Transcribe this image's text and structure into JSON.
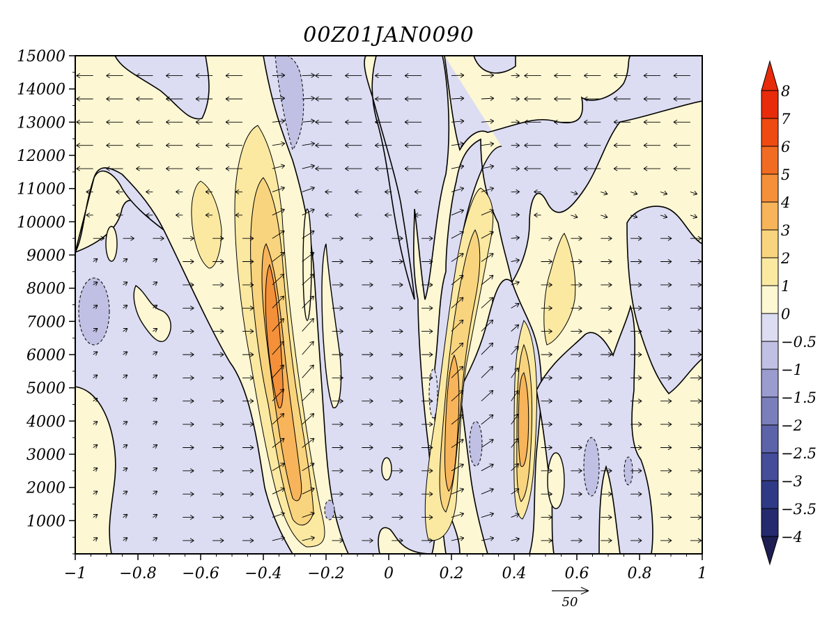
{
  "chart_data": {
    "type": "heatmap",
    "title": "00Z01JAN0090",
    "xlabel": "",
    "ylabel": "",
    "xlim": [
      -1,
      1
    ],
    "ylim": [
      0,
      15000
    ],
    "x_ticks": [
      -1,
      -0.8,
      -0.6,
      -0.4,
      -0.2,
      0,
      0.2,
      0.4,
      0.6,
      0.8,
      1
    ],
    "x_tick_labels": [
      "−1",
      "−0.8",
      "−0.6",
      "−0.4",
      "−0.2",
      "0",
      "0.2",
      "0.4",
      "0.6",
      "0.8",
      "1"
    ],
    "y_ticks": [
      1000,
      2000,
      3000,
      4000,
      5000,
      6000,
      7000,
      8000,
      9000,
      10000,
      11000,
      12000,
      13000,
      14000,
      15000
    ],
    "y_tick_labels": [
      "1000",
      "2000",
      "3000",
      "4000",
      "5000",
      "6000",
      "7000",
      "8000",
      "9000",
      "10000",
      "11000",
      "12000",
      "13000",
      "14000",
      "15000"
    ],
    "colorbar": {
      "levels": [
        -4,
        -3.5,
        -3,
        -2.5,
        -2,
        -1.5,
        -1,
        -0.5,
        0,
        1,
        2,
        3,
        4,
        5,
        6,
        7,
        8
      ],
      "labels": [
        "−4",
        "−3.5",
        "−3",
        "−2.5",
        "−2",
        "−1.5",
        "−1",
        "−0.5",
        "0",
        "1",
        "2",
        "3",
        "4",
        "5",
        "6",
        "7",
        "8"
      ],
      "colors": [
        "#1e1e52",
        "#252a6e",
        "#2f3a86",
        "#434d99",
        "#5c63a8",
        "#7a7fbb",
        "#9a9ccf",
        "#bfc0e3",
        "#dcdcf2",
        "#fdf7d3",
        "#fbe9a2",
        "#f9d47e",
        "#f7b45a",
        "#f4903a",
        "#f16c22",
        "#ee4a12",
        "#e82b0a",
        "#e82b0a"
      ],
      "extend": "both"
    },
    "vector_reference": {
      "label": "50",
      "magnitude": 50
    },
    "features": [
      {
        "kind": "positive_max",
        "x": -0.38,
        "y": 7000,
        "level": 4
      },
      {
        "kind": "positive_max",
        "x": 0.2,
        "y": 5000,
        "level": 3
      },
      {
        "kind": "positive_max",
        "x": 0.42,
        "y": 4200,
        "level": 3
      },
      {
        "kind": "negative_min",
        "x": -0.94,
        "y": 7200,
        "level": -1
      },
      {
        "kind": "negative_min",
        "x": -0.3,
        "y": 14000,
        "level": -1
      }
    ]
  }
}
